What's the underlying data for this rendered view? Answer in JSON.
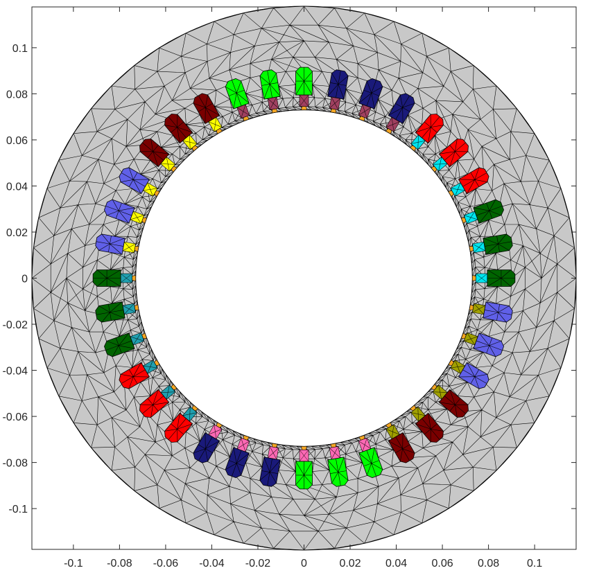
{
  "figure": {
    "type": "finite-element mesh plot",
    "description_visible": "stator cross-section mesh with coloured slot windings"
  },
  "axes": {
    "xlim": [
      -0.118,
      0.118
    ],
    "ylim": [
      -0.118,
      0.118
    ],
    "x_tick_labels": [
      {
        "value": -0.1,
        "label": "-0.1"
      },
      {
        "value": -0.08,
        "label": "-0.08"
      },
      {
        "value": -0.06,
        "label": "-0.06"
      },
      {
        "value": -0.04,
        "label": "-0.04"
      },
      {
        "value": -0.02,
        "label": "-0.02"
      },
      {
        "value": 0,
        "label": "0"
      },
      {
        "value": 0.02,
        "label": "0.02"
      },
      {
        "value": 0.04,
        "label": "0.04"
      },
      {
        "value": 0.06,
        "label": "0.06"
      },
      {
        "value": 0.08,
        "label": "0.08"
      },
      {
        "value": 0.1,
        "label": "0.1"
      }
    ],
    "y_tick_labels": [
      {
        "value": 0.1,
        "label": "0.1"
      },
      {
        "value": 0.08,
        "label": "0.08"
      },
      {
        "value": 0.06,
        "label": "0.06"
      },
      {
        "value": 0.04,
        "label": "0.04"
      },
      {
        "value": 0.02,
        "label": "0.02"
      },
      {
        "value": 0,
        "label": "0"
      },
      {
        "value": -0.02,
        "label": "-0.02"
      },
      {
        "value": -0.04,
        "label": "-0.04"
      },
      {
        "value": -0.06,
        "label": "-0.06"
      },
      {
        "value": -0.08,
        "label": "-0.08"
      },
      {
        "value": -0.1,
        "label": "-0.1"
      }
    ]
  },
  "stator": {
    "outer_radius": 0.118,
    "inner_radius": 0.073,
    "slot_count": 36,
    "yoke_color": "#c8c8c8",
    "mesh_color": "#000000",
    "tooth_tip_color": "#f5a623"
  },
  "slots": [
    {
      "angle_deg": 0,
      "coil_color": "#006400",
      "neck_color": "#00e5ee"
    },
    {
      "angle_deg": 10,
      "coil_color": "#006400",
      "neck_color": "#00e5ee"
    },
    {
      "angle_deg": 20,
      "coil_color": "#006400",
      "neck_color": "#00e5ee"
    },
    {
      "angle_deg": 30,
      "coil_color": "#ff0000",
      "neck_color": "#00e5ee"
    },
    {
      "angle_deg": 40,
      "coil_color": "#ff0000",
      "neck_color": "#00e5ee"
    },
    {
      "angle_deg": 50,
      "coil_color": "#ff0000",
      "neck_color": "#00e5ee"
    },
    {
      "angle_deg": 60,
      "coil_color": "#1a1a7a",
      "neck_color": "#a04060"
    },
    {
      "angle_deg": 70,
      "coil_color": "#1a1a7a",
      "neck_color": "#a04060"
    },
    {
      "angle_deg": 80,
      "coil_color": "#1a1a7a",
      "neck_color": "#a04060"
    },
    {
      "angle_deg": 90,
      "coil_color": "#00ff00",
      "neck_color": "#a04060"
    },
    {
      "angle_deg": 100,
      "coil_color": "#00ff00",
      "neck_color": "#a04060"
    },
    {
      "angle_deg": 110,
      "coil_color": "#00ff00",
      "neck_color": "#a04060"
    },
    {
      "angle_deg": 120,
      "coil_color": "#7a0000",
      "neck_color": "#ffff00"
    },
    {
      "angle_deg": 130,
      "coil_color": "#7a0000",
      "neck_color": "#ffff00"
    },
    {
      "angle_deg": 140,
      "coil_color": "#7a0000",
      "neck_color": "#ffff00"
    },
    {
      "angle_deg": 150,
      "coil_color": "#6060e8",
      "neck_color": "#ffff00"
    },
    {
      "angle_deg": 160,
      "coil_color": "#6060e8",
      "neck_color": "#ffff00"
    },
    {
      "angle_deg": 170,
      "coil_color": "#6060e8",
      "neck_color": "#ffff00"
    },
    {
      "angle_deg": 180,
      "coil_color": "#006400",
      "neck_color": "#20a0b0"
    },
    {
      "angle_deg": 190,
      "coil_color": "#006400",
      "neck_color": "#20a0b0"
    },
    {
      "angle_deg": 200,
      "coil_color": "#006400",
      "neck_color": "#20a0b0"
    },
    {
      "angle_deg": 210,
      "coil_color": "#ff0000",
      "neck_color": "#20a0b0"
    },
    {
      "angle_deg": 220,
      "coil_color": "#ff0000",
      "neck_color": "#20a0b0"
    },
    {
      "angle_deg": 230,
      "coil_color": "#ff0000",
      "neck_color": "#20a0b0"
    },
    {
      "angle_deg": 240,
      "coil_color": "#1a1a7a",
      "neck_color": "#ff69b4"
    },
    {
      "angle_deg": 250,
      "coil_color": "#1a1a7a",
      "neck_color": "#ff69b4"
    },
    {
      "angle_deg": 260,
      "coil_color": "#1a1a7a",
      "neck_color": "#ff69b4"
    },
    {
      "angle_deg": 270,
      "coil_color": "#00ff00",
      "neck_color": "#ff69b4"
    },
    {
      "angle_deg": 280,
      "coil_color": "#00ff00",
      "neck_color": "#ff69b4"
    },
    {
      "angle_deg": 290,
      "coil_color": "#00ff00",
      "neck_color": "#ff69b4"
    },
    {
      "angle_deg": 300,
      "coil_color": "#7a0000",
      "neck_color": "#a0a000"
    },
    {
      "angle_deg": 310,
      "coil_color": "#7a0000",
      "neck_color": "#a0a000"
    },
    {
      "angle_deg": 320,
      "coil_color": "#7a0000",
      "neck_color": "#a0a000"
    },
    {
      "angle_deg": 330,
      "coil_color": "#6060e8",
      "neck_color": "#a0a000"
    },
    {
      "angle_deg": 340,
      "coil_color": "#6060e8",
      "neck_color": "#a0a000"
    },
    {
      "angle_deg": 350,
      "coil_color": "#6060e8",
      "neck_color": "#a0a000"
    }
  ]
}
